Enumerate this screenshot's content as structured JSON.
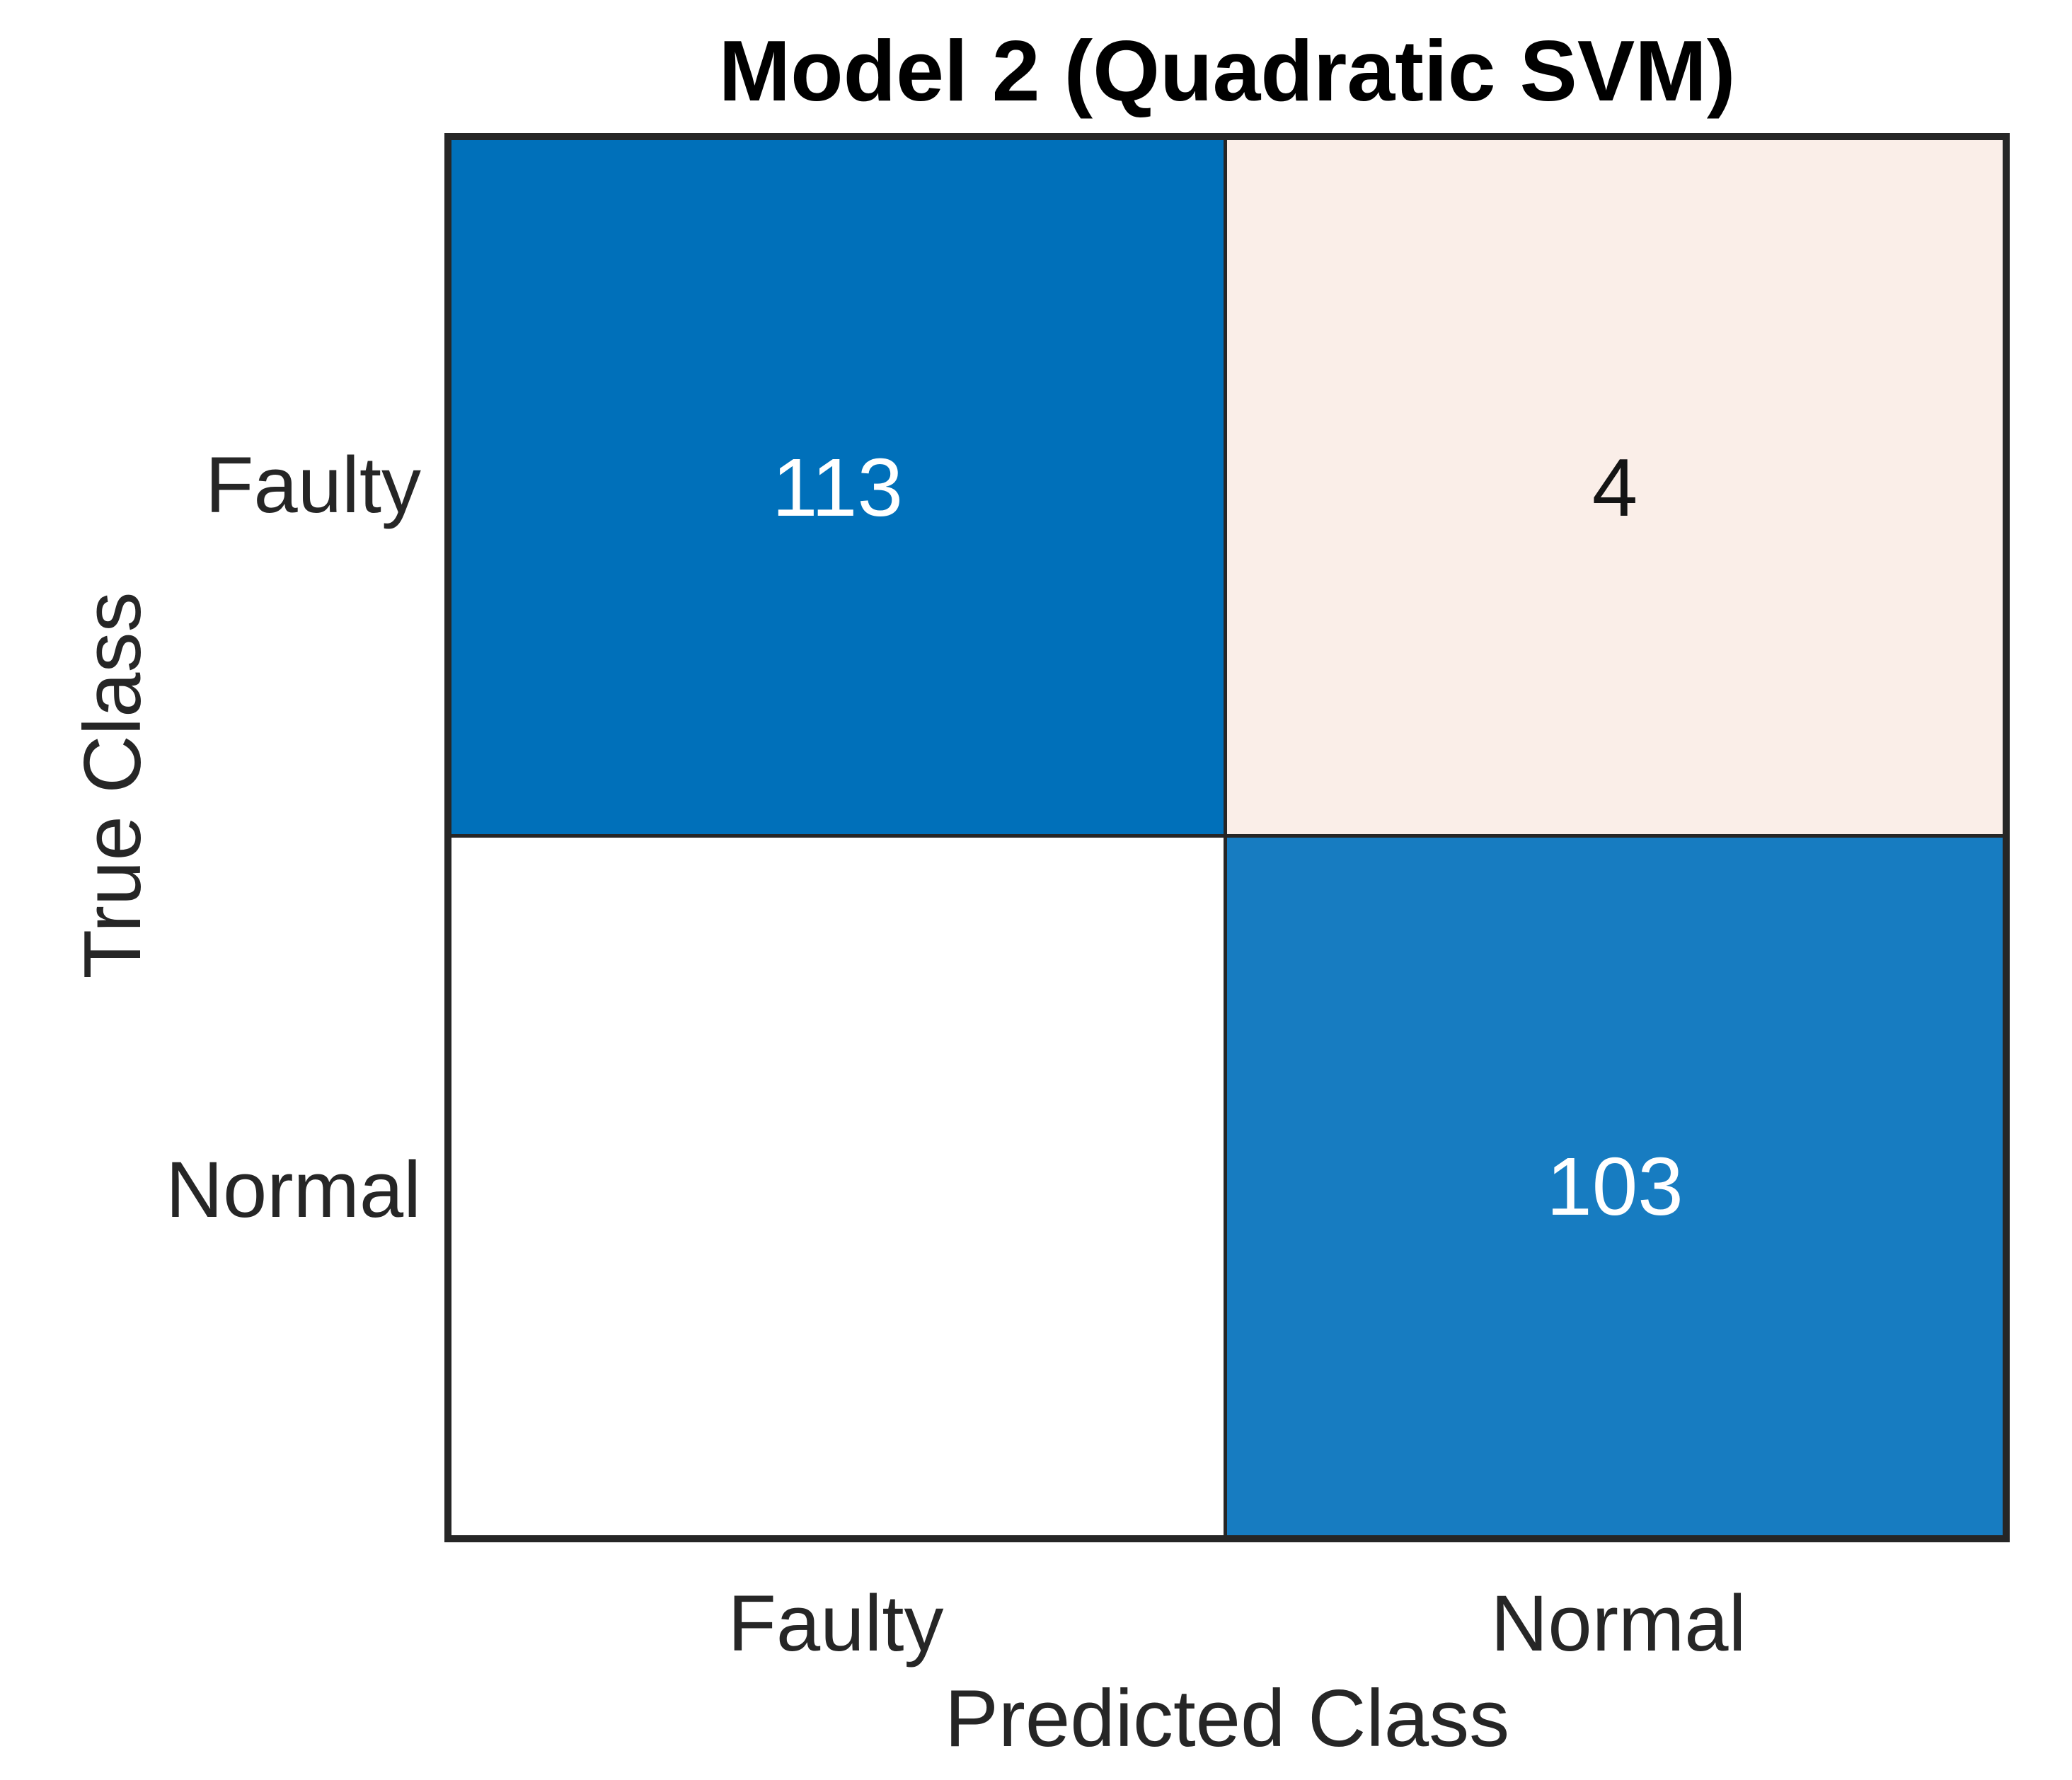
{
  "chart_data": {
    "type": "heatmap",
    "subtype": "confusion-matrix",
    "title": "Model 2 (Quadratic SVM)",
    "xlabel": "Predicted Class",
    "ylabel": "True Class",
    "x_categories": [
      "Faulty",
      "Normal"
    ],
    "y_categories": [
      "Faulty",
      "Normal"
    ],
    "values": [
      [
        113,
        4
      ],
      [
        0,
        103
      ]
    ],
    "display_values": [
      [
        "113",
        "4"
      ],
      [
        "",
        "103"
      ]
    ],
    "legend": "none",
    "grid_on": true,
    "colors": {
      "cell_0_0_bg": "#0070BA",
      "cell_0_1_bg": "#FAEEE8",
      "cell_1_0_bg": "#FFFFFF",
      "cell_1_1_bg": "#177CC1",
      "cell_0_0_text": "#FFFFFF",
      "cell_0_1_text": "#141414",
      "cell_1_0_text": "#141414",
      "cell_1_1_text": "#FFFFFF",
      "grid_line": "#262626",
      "tick_label_text": "#262626",
      "axis_label_text": "#262626",
      "title_text": "#000000",
      "figure_background": "#FFFFFF"
    }
  }
}
